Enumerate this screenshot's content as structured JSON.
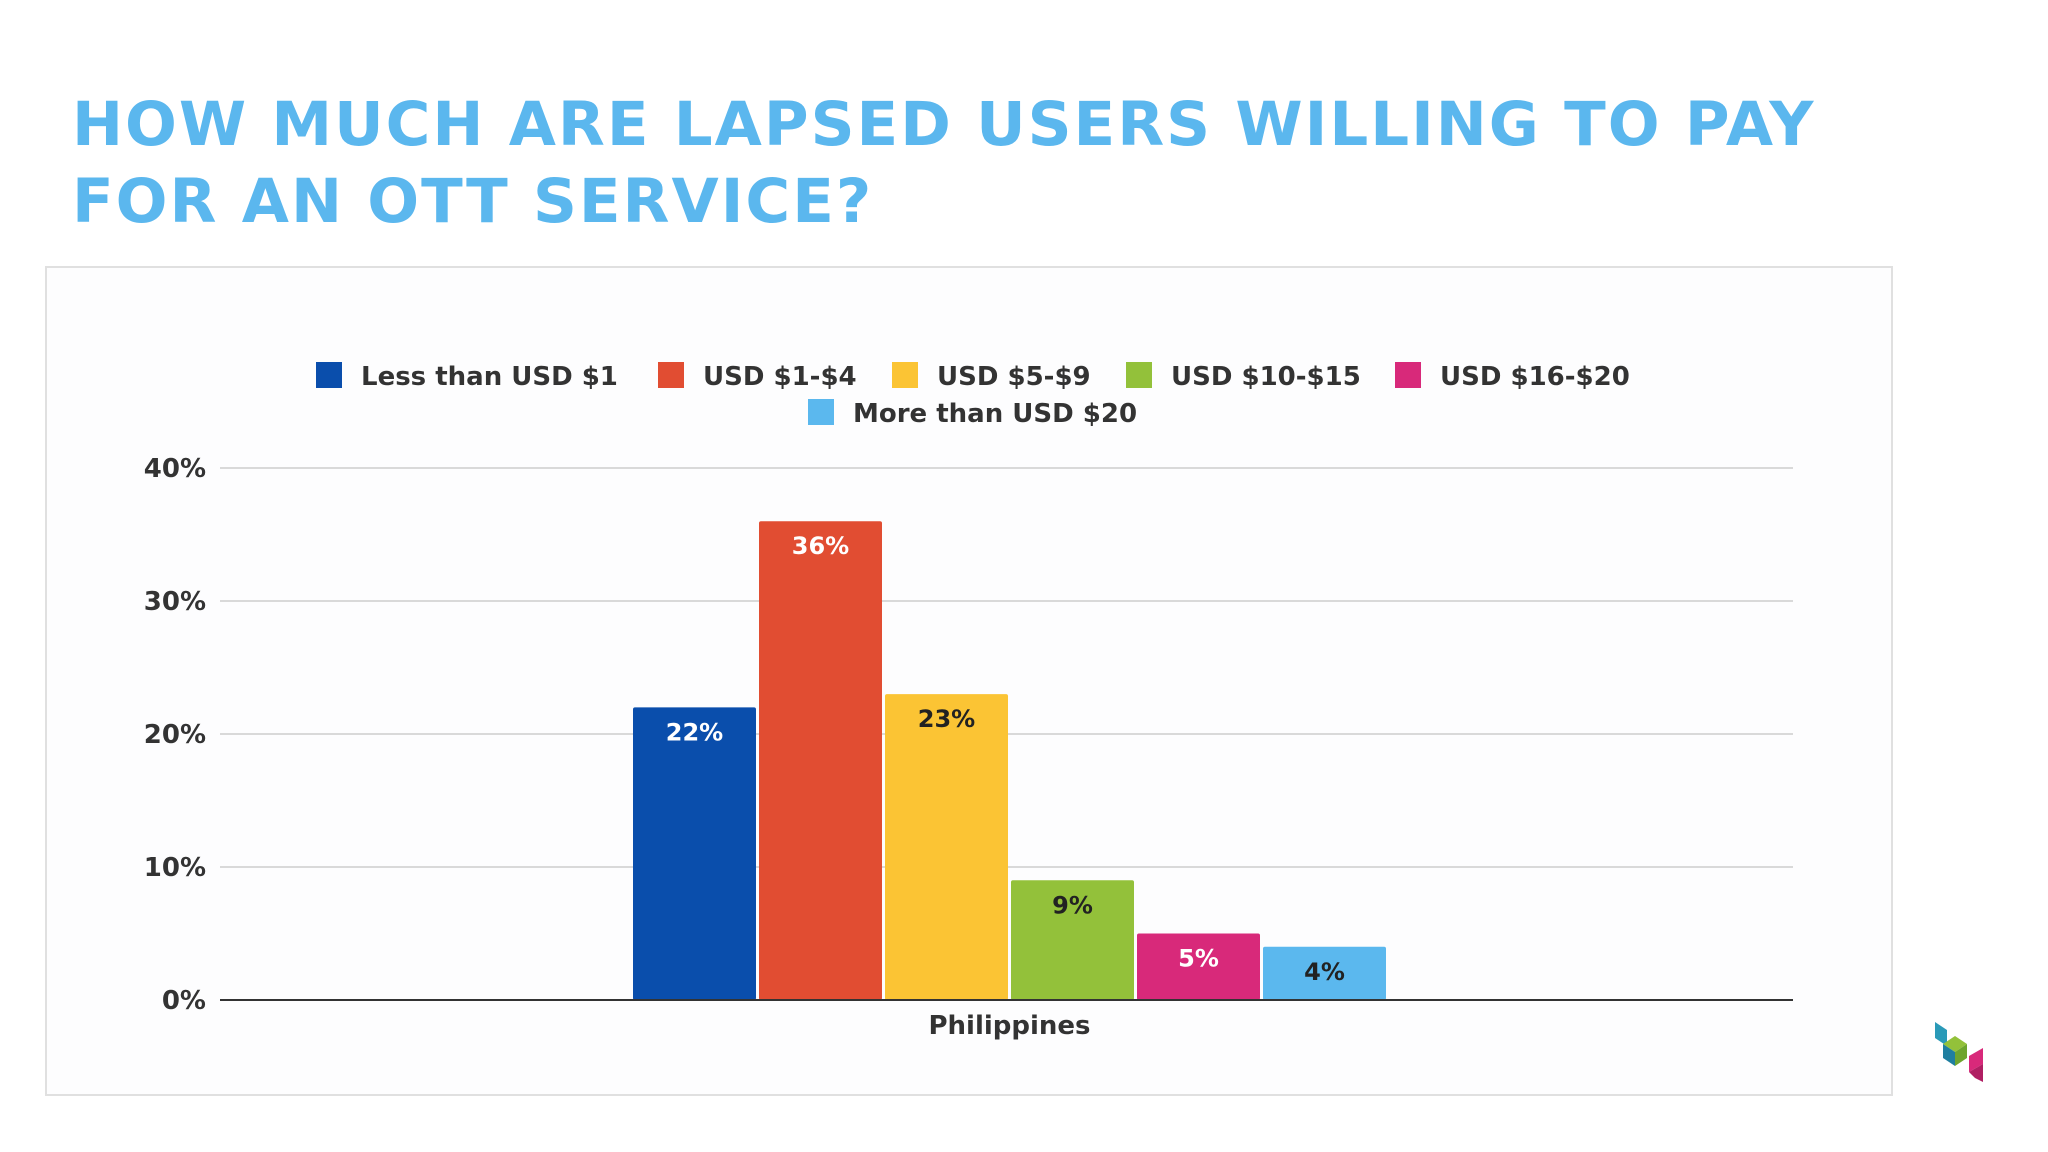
{
  "page": {
    "title": "HOW MUCH ARE LAPSED USERS WILLING TO PAY FOR AN OTT SERVICE?"
  },
  "chart_data": {
    "type": "bar",
    "categories": [
      "Philippines"
    ],
    "series": [
      {
        "name": "Less than USD $1",
        "values": [
          22
        ],
        "color": "#0a4eac",
        "label": "22%",
        "label_color": "#ffffff"
      },
      {
        "name": "USD $1-$4",
        "values": [
          36
        ],
        "color": "#e14d32",
        "label": "36%",
        "label_color": "#ffffff"
      },
      {
        "name": "USD $5-$9",
        "values": [
          23
        ],
        "color": "#fbc434",
        "label": "23%",
        "label_color": "#222222"
      },
      {
        "name": "USD $10-$15",
        "values": [
          9
        ],
        "color": "#93c13a",
        "label": "9%",
        "label_color": "#222222"
      },
      {
        "name": "USD $16-$20",
        "values": [
          5
        ],
        "color": "#d8297a",
        "label": "5%",
        "label_color": "#ffffff"
      },
      {
        "name": "More than USD $20",
        "values": [
          4
        ],
        "color": "#5bb8ee",
        "label": "4%",
        "label_color": "#222222"
      }
    ],
    "y_ticks": [
      "0%",
      "10%",
      "20%",
      "30%",
      "40%"
    ],
    "ylim": [
      0,
      40
    ],
    "grid": true,
    "legend_position": "top"
  },
  "colors": {
    "title": "#5bb7ee",
    "grid": "#d9d9d9",
    "axis": "#333333"
  },
  "logo": {
    "icon": "stacked-cubes-logo-icon"
  }
}
